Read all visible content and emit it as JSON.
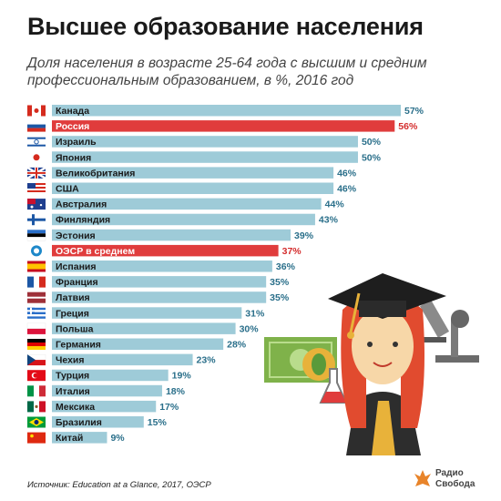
{
  "title": "Высшее образование населения",
  "subtitle": "Доля населения в возрасте 25-64 года с высшим и средним профессиональным образованием, в %, 2016 год",
  "source": "Источник: Education at a Glance, 2017, ОЭСР",
  "logo": {
    "line1": "Радио",
    "line2": "Свобода"
  },
  "colors": {
    "bar": "#9ecbd8",
    "highlight": "#e03c3c",
    "value": "#2a6f8a",
    "highlight_value": "#d42e2e"
  },
  "chart_data": {
    "type": "bar",
    "orientation": "horizontal",
    "title": "Высшее образование населения",
    "subtitle": "Доля населения в возрасте 25-64 года с высшим и средним профессиональным образованием, в %, 2016 год",
    "categories": [
      "Канада",
      "Россия",
      "Израиль",
      "Япония",
      "Великобритания",
      "США",
      "Австралия",
      "Финляндия",
      "Эстония",
      "ОЭСР в среднем",
      "Испания",
      "Франция",
      "Латвия",
      "Греция",
      "Польша",
      "Германия",
      "Чехия",
      "Турция",
      "Италия",
      "Мексика",
      "Бразилия",
      "Китай"
    ],
    "values": [
      57,
      56,
      50,
      50,
      46,
      46,
      44,
      43,
      39,
      37,
      36,
      35,
      35,
      31,
      30,
      28,
      23,
      19,
      18,
      17,
      15,
      9
    ],
    "value_labels": [
      "57%",
      "56%",
      "50%",
      "50%",
      "46%",
      "46%",
      "44%",
      "43%",
      "39%",
      "37%",
      "36%",
      "35%",
      "35%",
      "31%",
      "30%",
      "28%",
      "23%",
      "19%",
      "18%",
      "17%",
      "15%",
      "9%"
    ],
    "highlighted": [
      "Россия",
      "ОЭСР в среднем"
    ],
    "flags": [
      "canada-flag",
      "russia-flag",
      "israel-flag",
      "japan-flag",
      "uk-flag",
      "usa-flag",
      "australia-flag",
      "finland-flag",
      "estonia-flag",
      "oecd-icon",
      "spain-flag",
      "france-flag",
      "latvia-flag",
      "greece-flag",
      "poland-flag",
      "germany-flag",
      "czech-flag",
      "turkey-flag",
      "italy-flag",
      "mexico-flag",
      "brazil-flag",
      "china-flag"
    ],
    "xlim": [
      0,
      57
    ]
  }
}
